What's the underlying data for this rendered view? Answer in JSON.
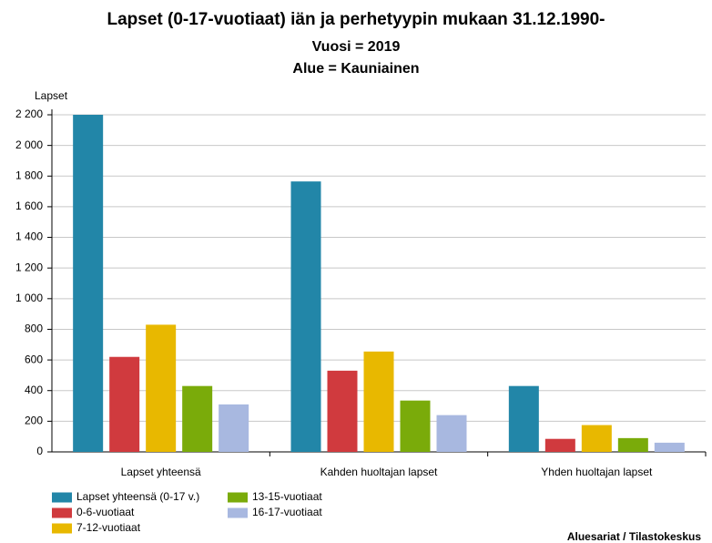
{
  "chart_data": {
    "type": "bar",
    "title": "Lapset (0-17-vuotiaat) iän ja perhetyypin mukaan 31.12.1990-",
    "subtitle": "Vuosi = 2019",
    "subtitle2": "Alue = Kauniainen",
    "y_label": "Lapset",
    "source": "Aluesariat / Tilastokeskus",
    "categories": [
      "Lapset yhteensä",
      "Kahden huoltajan lapset",
      "Yhden huoltajan lapset"
    ],
    "series": [
      {
        "name": "Lapset yhteensä (0-17 v.)",
        "color": "#2286a8",
        "values": [
          2200,
          1765,
          430
        ]
      },
      {
        "name": "0-6-vuotiaat",
        "color": "#d03a3e",
        "values": [
          620,
          530,
          85
        ]
      },
      {
        "name": "7-12-vuotiaat",
        "color": "#e8b800",
        "values": [
          830,
          655,
          175
        ]
      },
      {
        "name": "13-15-vuotiaat",
        "color": "#7aab0a",
        "values": [
          430,
          335,
          90
        ]
      },
      {
        "name": "16-17-vuotiaat",
        "color": "#a8b8e0",
        "values": [
          310,
          240,
          60
        ]
      }
    ],
    "ylim": [
      0,
      2200
    ],
    "yticks": [
      0,
      200,
      400,
      600,
      800,
      {
        "value": 1000,
        "label": "1 000"
      },
      {
        "value": 1200,
        "label": "1 200"
      },
      {
        "value": 1400,
        "label": "1 400"
      },
      {
        "value": 1600,
        "label": "1 600"
      },
      {
        "value": 1800,
        "label": "1 800"
      },
      {
        "value": 2000,
        "label": "2 000"
      },
      {
        "value": 2200,
        "label": "2 200"
      }
    ],
    "grid": true
  }
}
